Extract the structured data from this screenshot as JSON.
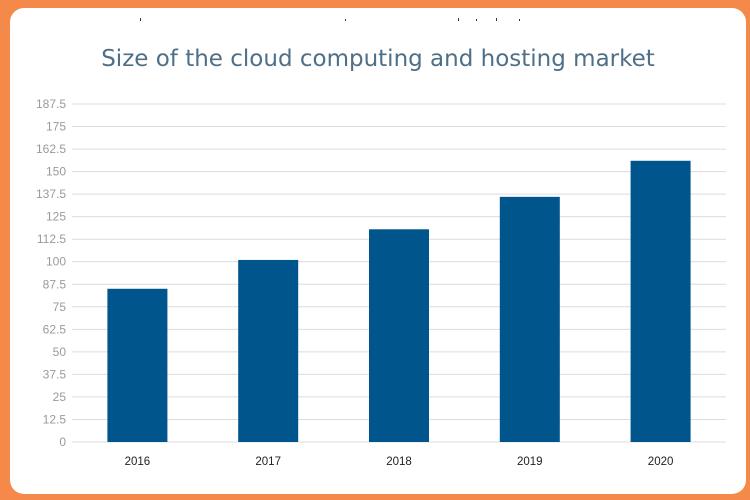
{
  "chart_data": {
    "type": "bar",
    "title": "Size of the cloud computing and hosting market",
    "categories": [
      "2016",
      "2017",
      "2018",
      "2019",
      "2020"
    ],
    "values": [
      85,
      101,
      118,
      136,
      156
    ],
    "ylim": [
      0,
      187.5
    ],
    "yticks": [
      "0",
      "12.5",
      "25",
      "37.5",
      "50",
      "62.5",
      "75",
      "87.5",
      "100",
      "112.5",
      "125",
      "137.5",
      "150",
      "162.5",
      "175",
      "187.5"
    ],
    "xlabel": "",
    "ylabel": "",
    "grid": true,
    "legend": "none",
    "bar_color": "#00558c",
    "grid_color": "#dcdcdc"
  }
}
